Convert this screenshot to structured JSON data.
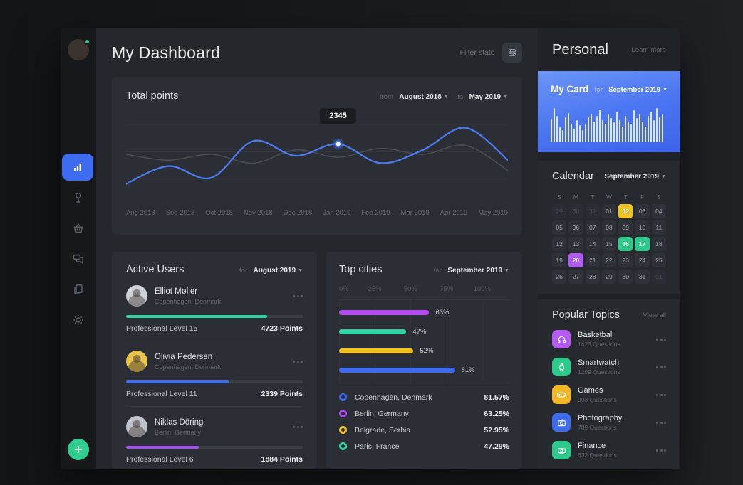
{
  "header": {
    "title": "My Dashboard",
    "filter_label": "Filter stats"
  },
  "sidebar": {
    "items": [
      {
        "icon": "bar-chart-icon",
        "active": true
      },
      {
        "icon": "signpost-icon",
        "active": false
      },
      {
        "icon": "basket-icon",
        "active": false
      },
      {
        "icon": "chat-icon",
        "active": false
      },
      {
        "icon": "documents-icon",
        "active": false
      },
      {
        "icon": "settings-icon",
        "active": false
      }
    ]
  },
  "total_points": {
    "title": "Total points",
    "from_label": "from",
    "from_value": "August 2018",
    "to_label": "to",
    "to_value": "May 2019",
    "tooltip_value": "2345",
    "chart_data": {
      "type": "line",
      "x": [
        "Aug 2018",
        "Sep 2018",
        "Oct 2018",
        "Nov 2018",
        "Dec 2018",
        "Jan 2019",
        "Feb 2019",
        "Mar 2019",
        "Apr 2019",
        "May 2019"
      ],
      "series": [
        {
          "name": "previous",
          "color": "#4a4f56",
          "width": 1.5,
          "values": [
            52,
            44,
            52,
            40,
            58,
            48,
            60,
            52,
            64,
            30
          ]
        },
        {
          "name": "points",
          "color": "#4d7cf5",
          "width": 2.2,
          "values": [
            12,
            36,
            20,
            70,
            50,
            66,
            40,
            58,
            88,
            44
          ]
        }
      ],
      "highlight": {
        "x_index": 5,
        "value": 2345
      },
      "grid": true,
      "ylim": [
        0,
        100
      ]
    }
  },
  "active_users": {
    "title": "Active Users",
    "for_label": "for",
    "period": "August 2019",
    "users": [
      {
        "name": "Elliot Møller",
        "location": "Copenhagen, Denmark",
        "level": "Professional Level 15",
        "points": "4723 Points",
        "progress": 80,
        "color": "#2fd2a0",
        "avatar_bg": "#cfd3d8"
      },
      {
        "name": "Olivia Pedersen",
        "location": "Copenhagen, Denmark",
        "level": "Professional Level 11",
        "points": "2339 Points",
        "progress": 58,
        "color": "#3e6cf0",
        "avatar_bg": "#e8c44a"
      },
      {
        "name": "Niklas Döring",
        "location": "Berlin, Germany",
        "level": "Professional Level 6",
        "points": "1884 Points",
        "progress": 41,
        "color": "#a14df0",
        "avatar_bg": "#bfc4ca"
      }
    ]
  },
  "top_cities": {
    "title": "Top cities",
    "for_label": "for",
    "period": "September 2019",
    "chart_data": {
      "type": "bar",
      "orientation": "horizontal",
      "axis_ticks": [
        "0%",
        "25%",
        "50%",
        "75%",
        "100%"
      ],
      "xlim": [
        0,
        100
      ],
      "bars": [
        {
          "label": "63%",
          "value": 63,
          "color": "#b44bf0"
        },
        {
          "label": "47%",
          "value": 47,
          "color": "#2fd2a0"
        },
        {
          "label": "52%",
          "value": 52,
          "color": "#f2c124"
        },
        {
          "label": "81%",
          "value": 81,
          "color": "#3e6cf0"
        }
      ]
    },
    "legend": [
      {
        "city": "Copenhagen, Denmark",
        "value": "81.57%",
        "color": "#3e6cf0"
      },
      {
        "city": "Berlin, Germany",
        "value": "63.25%",
        "color": "#b44bf0"
      },
      {
        "city": "Belgrade, Serbia",
        "value": "52.95%",
        "color": "#f2c124"
      },
      {
        "city": "Paris, France",
        "value": "47.29%",
        "color": "#2fd2a0"
      }
    ]
  },
  "personal": {
    "title": "Personal",
    "learn_more": "Learn more",
    "my_card": {
      "title": "My Card",
      "for_label": "for",
      "period": "September 2019",
      "chart_data": {
        "type": "bar",
        "values": [
          58,
          85,
          66,
          38,
          30,
          62,
          74,
          46,
          34,
          56,
          42,
          30,
          46,
          62,
          72,
          52,
          66,
          82,
          56,
          46,
          70,
          60,
          50,
          76,
          56,
          40,
          66,
          50,
          46,
          80,
          60,
          72,
          52,
          40,
          66,
          76,
          56,
          86,
          62,
          70
        ]
      }
    },
    "calendar": {
      "title": "Calendar",
      "period": "September 2019",
      "weekdays": [
        "S",
        "M",
        "T",
        "W",
        "T",
        "F",
        "S"
      ],
      "highlight_colors": {
        "yellow": "#f2c124",
        "green": "#2bc98a",
        "purple": "#b05cf0"
      },
      "days": [
        {
          "d": "29",
          "muted": true
        },
        {
          "d": "30",
          "muted": true
        },
        {
          "d": "31",
          "muted": true
        },
        {
          "d": "01"
        },
        {
          "d": "02",
          "hl": "#f2c124"
        },
        {
          "d": "03"
        },
        {
          "d": "04"
        },
        {
          "d": "05"
        },
        {
          "d": "06"
        },
        {
          "d": "07"
        },
        {
          "d": "08"
        },
        {
          "d": "09"
        },
        {
          "d": "10"
        },
        {
          "d": "11"
        },
        {
          "d": "12"
        },
        {
          "d": "13"
        },
        {
          "d": "14"
        },
        {
          "d": "15"
        },
        {
          "d": "16",
          "hl": "#2bc98a"
        },
        {
          "d": "17",
          "hl": "#2bc98a"
        },
        {
          "d": "18"
        },
        {
          "d": "19"
        },
        {
          "d": "20",
          "hl": "#b05cf0"
        },
        {
          "d": "21"
        },
        {
          "d": "22"
        },
        {
          "d": "23"
        },
        {
          "d": "24"
        },
        {
          "d": "25"
        },
        {
          "d": "26"
        },
        {
          "d": "27"
        },
        {
          "d": "28"
        },
        {
          "d": "29"
        },
        {
          "d": "30"
        },
        {
          "d": "31"
        },
        {
          "d": "01",
          "muted": true
        }
      ]
    },
    "topics": {
      "title": "Popular Topics",
      "view_all": "View all",
      "items": [
        {
          "name": "Basketball",
          "count": "1423 Questions",
          "color": "#b45bf2",
          "icon": "headphones-icon"
        },
        {
          "name": "Smartwatch",
          "count": "1299 Questions",
          "color": "#2bc98a",
          "icon": "smartwatch-icon"
        },
        {
          "name": "Games",
          "count": "993 Questions",
          "color": "#f2b724",
          "icon": "gamepad-icon"
        },
        {
          "name": "Photography",
          "count": "789 Questions",
          "color": "#3e6cf0",
          "icon": "camera-icon"
        },
        {
          "name": "Finance",
          "count": "632 Questions",
          "color": "#2bc98a",
          "icon": "money-icon"
        }
      ]
    }
  }
}
